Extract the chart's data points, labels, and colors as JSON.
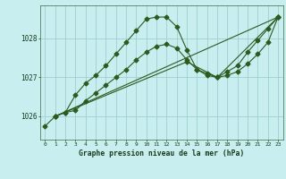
{
  "title": "Graphe pression niveau de la mer (hPa)",
  "bg_color": "#c8eef0",
  "grid_color": "#9ecfcf",
  "line_color": "#2d5a1e",
  "xlim": [
    -0.5,
    23.5
  ],
  "ylim": [
    1025.4,
    1028.85
  ],
  "yticks": [
    1026,
    1027,
    1028
  ],
  "xticks": [
    0,
    1,
    2,
    3,
    4,
    5,
    6,
    7,
    8,
    9,
    10,
    11,
    12,
    13,
    14,
    15,
    16,
    17,
    18,
    19,
    20,
    21,
    22,
    23
  ],
  "series1_x": [
    0,
    1,
    2,
    3,
    4,
    5,
    6,
    7,
    8,
    9,
    10,
    11,
    12,
    13,
    14,
    15,
    16,
    17,
    18,
    19,
    20,
    21,
    22,
    23
  ],
  "series1_y": [
    1025.75,
    1026.0,
    1026.1,
    1026.55,
    1026.85,
    1027.05,
    1027.3,
    1027.6,
    1027.9,
    1028.2,
    1028.5,
    1028.55,
    1028.55,
    1028.3,
    1027.7,
    1027.2,
    1027.05,
    1027.0,
    1027.15,
    1027.3,
    1027.65,
    1027.95,
    1028.25,
    1028.55
  ],
  "series2_x": [
    1,
    2,
    3,
    4,
    5,
    6,
    7,
    8,
    9,
    10,
    11,
    12,
    13,
    14,
    15,
    16,
    17,
    18,
    19,
    20,
    21,
    22,
    23
  ],
  "series2_y": [
    1026.0,
    1026.1,
    1026.15,
    1026.4,
    1026.6,
    1026.8,
    1027.0,
    1027.2,
    1027.45,
    1027.65,
    1027.8,
    1027.85,
    1027.75,
    1027.45,
    1027.2,
    1027.1,
    1027.0,
    1027.05,
    1027.15,
    1027.35,
    1027.6,
    1027.9,
    1028.55
  ],
  "series3_x": [
    1,
    23
  ],
  "series3_y": [
    1026.0,
    1028.55
  ],
  "series4_x": [
    1,
    14,
    17,
    23
  ],
  "series4_y": [
    1026.0,
    1027.4,
    1027.0,
    1028.55
  ]
}
